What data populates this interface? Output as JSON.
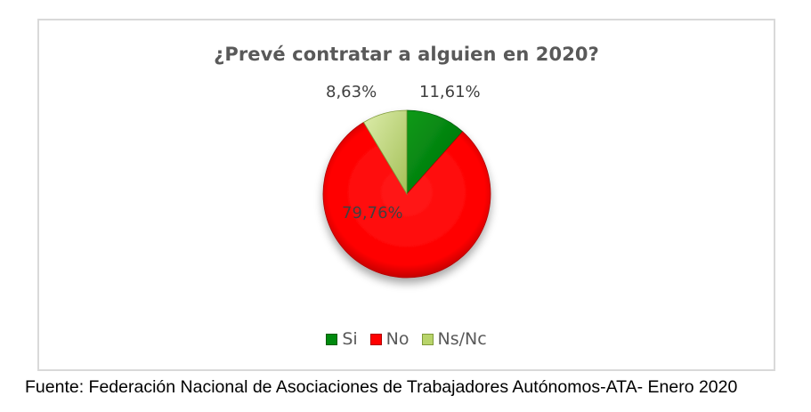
{
  "chart_data": {
    "type": "pie",
    "title": "¿Prevé contratar a alguien en 2020?",
    "categories": [
      "Si",
      "No",
      "Ns/Nc"
    ],
    "values": [
      11.61,
      79.76,
      8.63
    ],
    "labels": [
      "11,61%",
      "79,76%",
      "8,63%"
    ],
    "colors": [
      "#008a0e",
      "#ff0000",
      "#b8d46a"
    ],
    "legend_position": "bottom",
    "start_angle_deg": 0,
    "direction": "clockwise"
  },
  "chart": {
    "title": "¿Prevé contratar a alguien en 2020?",
    "labels": {
      "si": "11,61%",
      "no": "79,76%",
      "nsnc": "8,63%"
    },
    "legend": [
      {
        "label": "Si",
        "color": "#008a0e"
      },
      {
        "label": "No",
        "color": "#ff0000"
      },
      {
        "label": "Ns/Nc",
        "color": "#b8d46a"
      }
    ]
  },
  "caption": "Fuente: Federación Nacional de Asociaciones de Trabajadores Autónomos-ATA- Enero 2020"
}
